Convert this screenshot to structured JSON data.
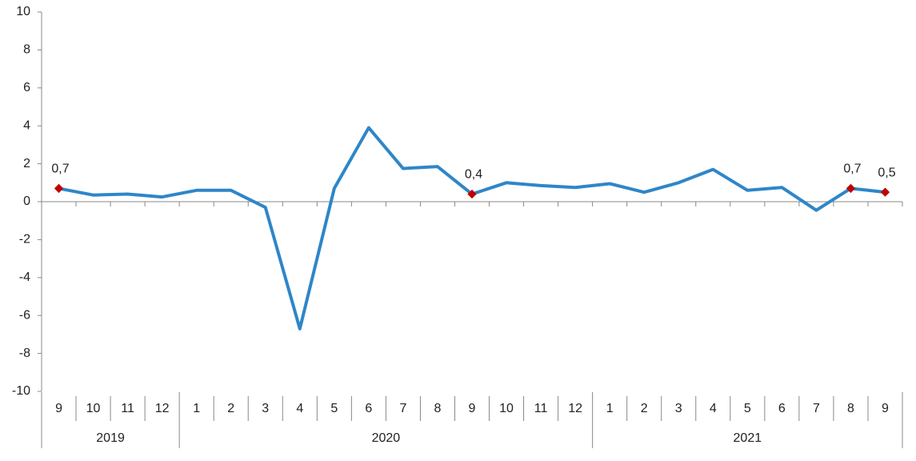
{
  "chart_data": {
    "type": "line",
    "groups": [
      {
        "name": "2019",
        "categories": [
          "9",
          "10",
          "11",
          "12"
        ]
      },
      {
        "name": "2020",
        "categories": [
          "1",
          "2",
          "3",
          "4",
          "5",
          "6",
          "7",
          "8",
          "9",
          "10",
          "11",
          "12"
        ]
      },
      {
        "name": "2021",
        "categories": [
          "1",
          "2",
          "3",
          "4",
          "5",
          "6",
          "7",
          "8",
          "9"
        ]
      }
    ],
    "values": [
      0.7,
      0.35,
      0.4,
      0.25,
      0.6,
      0.6,
      -0.3,
      -6.7,
      0.7,
      3.9,
      1.75,
      1.85,
      0.4,
      1.0,
      0.85,
      0.75,
      0.95,
      0.5,
      1.0,
      1.7,
      0.6,
      0.75,
      -0.45,
      0.7,
      0.5
    ],
    "value_labels": [
      "0,7",
      null,
      null,
      null,
      null,
      null,
      null,
      null,
      null,
      null,
      null,
      null,
      "0,4",
      null,
      null,
      null,
      null,
      null,
      null,
      null,
      null,
      null,
      null,
      "0,7",
      "0,5"
    ],
    "color": "#2e86c8",
    "marker_color": "#c00000",
    "ylim": [
      -10,
      10
    ],
    "yticks": [
      -10,
      -8,
      -6,
      -4,
      -2,
      0,
      2,
      4,
      6,
      8,
      10
    ]
  }
}
